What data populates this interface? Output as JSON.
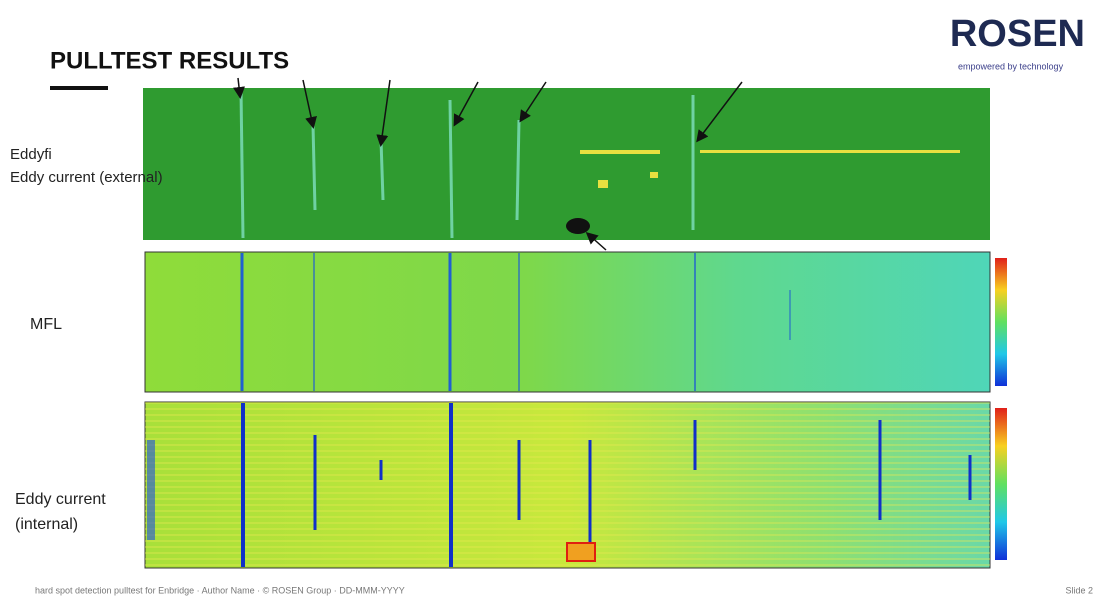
{
  "header": {
    "title": "PULLTEST RESULTS",
    "logo": "ROSEN",
    "tagline": "empowered by technology"
  },
  "panels": [
    {
      "label_lines": [
        "Eddyfi",
        "Eddy current (external)"
      ]
    },
    {
      "label_lines": [
        "MFL"
      ]
    },
    {
      "label_lines": [
        "Eddy current",
        "(internal)"
      ]
    }
  ],
  "footer": {
    "text": "hard spot detection pulltest  for Enbridge · Author Name · © ROSEN Group · DD-MMM-YYYY",
    "slide": "Slide 2"
  }
}
